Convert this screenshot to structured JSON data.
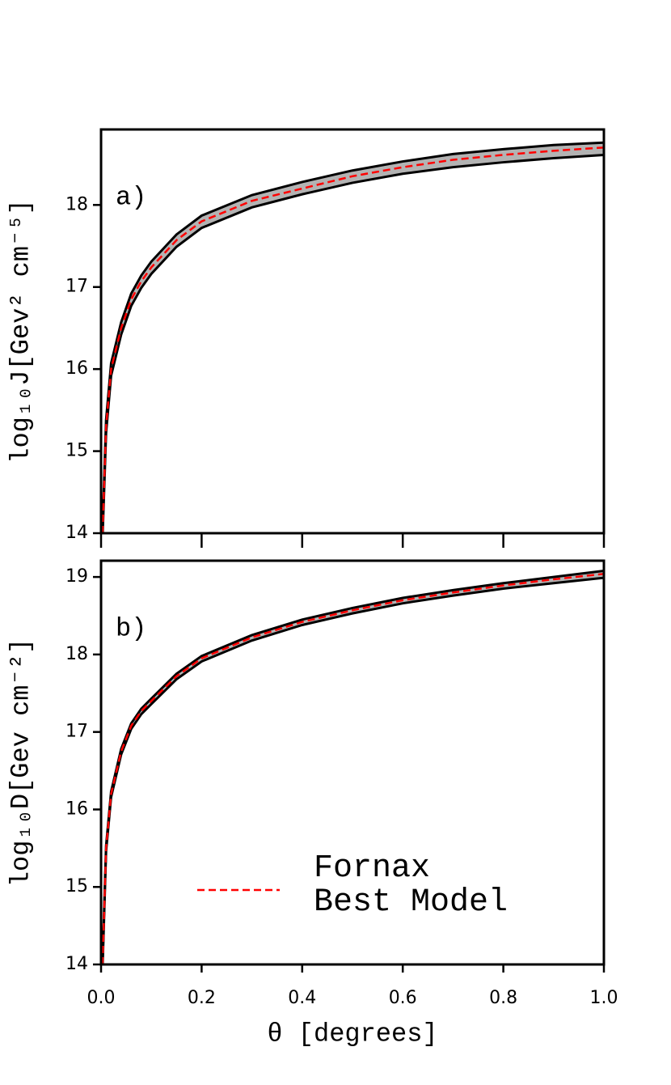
{
  "chart_data": [
    {
      "type": "line",
      "annotation": "a)",
      "ylabel": "log₁₀J[Gev² cm⁻⁵]",
      "x": [
        0.003,
        0.01,
        0.02,
        0.04,
        0.06,
        0.08,
        0.1,
        0.15,
        0.2,
        0.3,
        0.4,
        0.5,
        0.6,
        0.7,
        0.8,
        0.9,
        1.0
      ],
      "series": [
        {
          "color": "#000000",
          "values": [
            14.05,
            15.38,
            16.07,
            16.57,
            16.92,
            17.14,
            17.31,
            17.64,
            17.87,
            18.12,
            18.28,
            18.42,
            18.53,
            18.62,
            18.68,
            18.73,
            18.76
          ]
        },
        {
          "color": "#000000",
          "values": [
            13.95,
            15.22,
            15.92,
            16.42,
            16.77,
            16.99,
            17.16,
            17.49,
            17.72,
            17.97,
            18.13,
            18.27,
            18.38,
            18.46,
            18.52,
            18.57,
            18.61
          ]
        },
        {
          "color": "#ff0000",
          "dashed": true,
          "values": [
            14.0,
            15.3,
            16.0,
            16.5,
            16.85,
            17.07,
            17.24,
            17.57,
            17.8,
            18.05,
            18.2,
            18.35,
            18.46,
            18.55,
            18.61,
            18.66,
            18.7
          ]
        }
      ],
      "fill_between": [
        0,
        1
      ],
      "fill_color": "#b3b3b3",
      "xlim": [
        0,
        1
      ],
      "xticks": [
        0,
        0.2,
        0.4,
        0.6,
        0.8,
        1.0
      ],
      "ylim": [
        14,
        18.92
      ],
      "yticks": [
        14,
        15,
        16,
        17,
        18
      ]
    },
    {
      "type": "line",
      "annotation": "b)",
      "ylabel": "log₁₀D[Gev cm⁻²]",
      "xlabel": "θ [degrees]",
      "x": [
        0.003,
        0.01,
        0.02,
        0.04,
        0.06,
        0.08,
        0.1,
        0.15,
        0.2,
        0.3,
        0.4,
        0.5,
        0.6,
        0.7,
        0.8,
        0.9,
        1.0
      ],
      "series": [
        {
          "color": "#000000",
          "values": [
            14.03,
            15.53,
            16.23,
            16.78,
            17.11,
            17.3,
            17.43,
            17.75,
            17.98,
            18.25,
            18.45,
            18.6,
            18.73,
            18.83,
            18.92,
            19.0,
            19.08
          ]
        },
        {
          "color": "#000000",
          "values": [
            13.96,
            15.46,
            16.16,
            16.71,
            17.04,
            17.23,
            17.36,
            17.68,
            17.91,
            18.18,
            18.38,
            18.53,
            18.66,
            18.76,
            18.85,
            18.92,
            18.99
          ]
        },
        {
          "name": "Fornax\nBest Model",
          "color": "#ff0000",
          "dashed": true,
          "values": [
            14.0,
            15.5,
            16.2,
            16.75,
            17.08,
            17.27,
            17.4,
            17.72,
            17.95,
            18.22,
            18.42,
            18.57,
            18.7,
            18.8,
            18.89,
            18.97,
            19.04
          ]
        }
      ],
      "fill_between": [
        0,
        1
      ],
      "fill_color": "#b3b3b3",
      "xlim": [
        0,
        1
      ],
      "xticks": [
        {
          "value": 0,
          "label": "0.0"
        },
        0.2,
        0.4,
        0.6,
        0.8,
        {
          "value": 1,
          "label": "1.0"
        }
      ],
      "ylim": [
        14,
        19.21
      ],
      "yticks": [
        14,
        15,
        16,
        17,
        18,
        19
      ]
    }
  ]
}
